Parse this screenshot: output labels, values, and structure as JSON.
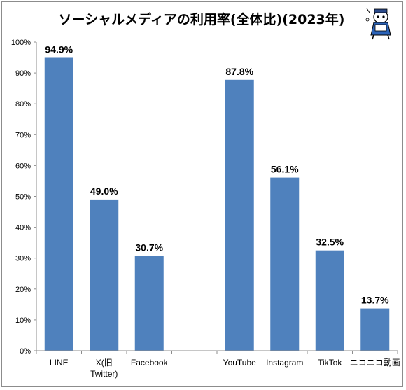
{
  "chart_data": {
    "type": "bar",
    "title": "ソーシャルメディアの利用率(全体比)(2023年)",
    "categories": [
      "LINE",
      "X(旧\nTwitter)",
      "Facebook",
      "",
      "YouTube",
      "Instagram",
      "TikTok",
      "ニコニコ動画"
    ],
    "values": [
      94.9,
      49.0,
      30.7,
      null,
      87.8,
      56.1,
      32.5,
      13.7
    ],
    "data_labels": [
      "94.9%",
      "49.0%",
      "30.7%",
      "",
      "87.8%",
      "56.1%",
      "32.5%",
      "13.7%"
    ],
    "ylim": [
      0,
      100
    ],
    "yticks": [
      "0%",
      "10%",
      "20%",
      "30%",
      "40%",
      "50%",
      "60%",
      "70%",
      "80%",
      "90%",
      "100%"
    ],
    "xlabel": "",
    "ylabel": "",
    "grid": false,
    "bar_color": "#4f81bd"
  }
}
